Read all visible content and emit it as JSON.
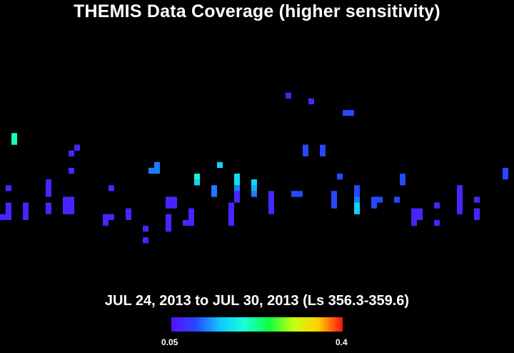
{
  "chart_data": {
    "type": "heatmap",
    "title": "THEMIS Data Coverage (higher sensitivity)",
    "subtitle": "JUL 24, 2013 to JUL 30, 2013 (Ls 356.3-359.6)",
    "colorbar": {
      "min_label": "0.05",
      "max_label": "0.4",
      "range": [
        0.05,
        0.4
      ],
      "colormap": [
        "#5a0fff",
        "#2848ff",
        "#10c8ff",
        "#18ffd8",
        "#10ff40",
        "#c8ff10",
        "#ffd000",
        "#ff1010"
      ]
    },
    "grid": {
      "columns": 90,
      "rows": 61
    },
    "cells": [
      [
        2,
        23,
        0.21
      ],
      [
        2,
        24,
        0.21
      ],
      [
        1,
        32,
        0.07
      ],
      [
        12,
        26,
        0.07
      ],
      [
        13,
        25,
        0.07
      ],
      [
        12,
        29,
        0.07
      ],
      [
        1,
        35,
        0.07
      ],
      [
        1,
        36,
        0.07
      ],
      [
        0,
        37,
        0.07
      ],
      [
        1,
        37,
        0.07
      ],
      [
        4,
        35,
        0.07
      ],
      [
        4,
        36,
        0.07
      ],
      [
        4,
        37,
        0.07
      ],
      [
        8,
        31,
        0.07
      ],
      [
        8,
        32,
        0.07
      ],
      [
        8,
        33,
        0.07
      ],
      [
        8,
        35,
        0.07
      ],
      [
        8,
        36,
        0.07
      ],
      [
        11,
        34,
        0.07
      ],
      [
        12,
        34,
        0.07
      ],
      [
        11,
        35,
        0.07
      ],
      [
        12,
        35,
        0.07
      ],
      [
        11,
        36,
        0.07
      ],
      [
        12,
        36,
        0.07
      ],
      [
        19,
        32,
        0.07
      ],
      [
        18,
        37,
        0.07
      ],
      [
        19,
        37,
        0.07
      ],
      [
        18,
        38,
        0.07
      ],
      [
        22,
        36,
        0.07
      ],
      [
        22,
        37,
        0.07
      ],
      [
        25,
        39,
        0.07
      ],
      [
        25,
        41,
        0.07
      ],
      [
        26,
        29,
        0.12
      ],
      [
        27,
        29,
        0.12
      ],
      [
        27,
        28,
        0.12
      ],
      [
        29,
        34,
        0.07
      ],
      [
        30,
        34,
        0.07
      ],
      [
        29,
        35,
        0.07
      ],
      [
        30,
        35,
        0.07
      ],
      [
        29,
        37,
        0.07
      ],
      [
        29,
        38,
        0.07
      ],
      [
        29,
        39,
        0.07
      ],
      [
        32,
        38,
        0.07
      ],
      [
        33,
        38,
        0.07
      ],
      [
        33,
        36,
        0.07
      ],
      [
        33,
        37,
        0.07
      ],
      [
        34,
        30,
        0.19
      ],
      [
        34,
        31,
        0.16
      ],
      [
        37,
        32,
        0.12
      ],
      [
        37,
        33,
        0.12
      ],
      [
        38,
        28,
        0.16
      ],
      [
        40,
        35,
        0.07
      ],
      [
        40,
        36,
        0.07
      ],
      [
        40,
        37,
        0.07
      ],
      [
        40,
        38,
        0.07
      ],
      [
        41,
        34,
        0.07
      ],
      [
        41,
        30,
        0.17
      ],
      [
        41,
        31,
        0.17
      ],
      [
        41,
        32,
        0.12
      ],
      [
        41,
        33,
        0.07
      ],
      [
        44,
        31,
        0.16
      ],
      [
        44,
        32,
        0.14
      ],
      [
        44,
        33,
        0.12
      ],
      [
        47,
        33,
        0.07
      ],
      [
        47,
        34,
        0.07
      ],
      [
        47,
        35,
        0.07
      ],
      [
        47,
        36,
        0.07
      ],
      [
        50,
        16,
        0.07
      ],
      [
        54,
        17,
        0.07
      ],
      [
        51,
        33,
        0.1
      ],
      [
        52,
        33,
        0.1
      ],
      [
        53,
        25,
        0.1
      ],
      [
        53,
        26,
        0.1
      ],
      [
        56,
        25,
        0.1
      ],
      [
        56,
        26,
        0.1
      ],
      [
        59,
        30,
        0.1
      ],
      [
        58,
        33,
        0.1
      ],
      [
        58,
        34,
        0.1
      ],
      [
        58,
        35,
        0.1
      ],
      [
        60,
        19,
        0.1
      ],
      [
        61,
        19,
        0.1
      ],
      [
        62,
        32,
        0.1
      ],
      [
        62,
        33,
        0.1
      ],
      [
        62,
        34,
        0.12
      ],
      [
        62,
        35,
        0.16
      ],
      [
        62,
        36,
        0.16
      ],
      [
        65,
        34,
        0.1
      ],
      [
        65,
        35,
        0.1
      ],
      [
        66,
        34,
        0.1
      ],
      [
        69,
        34,
        0.1
      ],
      [
        70,
        30,
        0.1
      ],
      [
        70,
        31,
        0.1
      ],
      [
        72,
        36,
        0.07
      ],
      [
        73,
        36,
        0.07
      ],
      [
        72,
        37,
        0.07
      ],
      [
        73,
        37,
        0.07
      ],
      [
        72,
        38,
        0.07
      ],
      [
        76,
        38,
        0.07
      ],
      [
        76,
        35,
        0.07
      ],
      [
        80,
        32,
        0.07
      ],
      [
        80,
        33,
        0.07
      ],
      [
        80,
        34,
        0.07
      ],
      [
        80,
        35,
        0.07
      ],
      [
        80,
        36,
        0.07
      ],
      [
        83,
        34,
        0.07
      ],
      [
        83,
        36,
        0.07
      ],
      [
        83,
        37,
        0.07
      ],
      [
        88,
        29,
        0.1
      ],
      [
        88,
        30,
        0.1
      ]
    ]
  }
}
